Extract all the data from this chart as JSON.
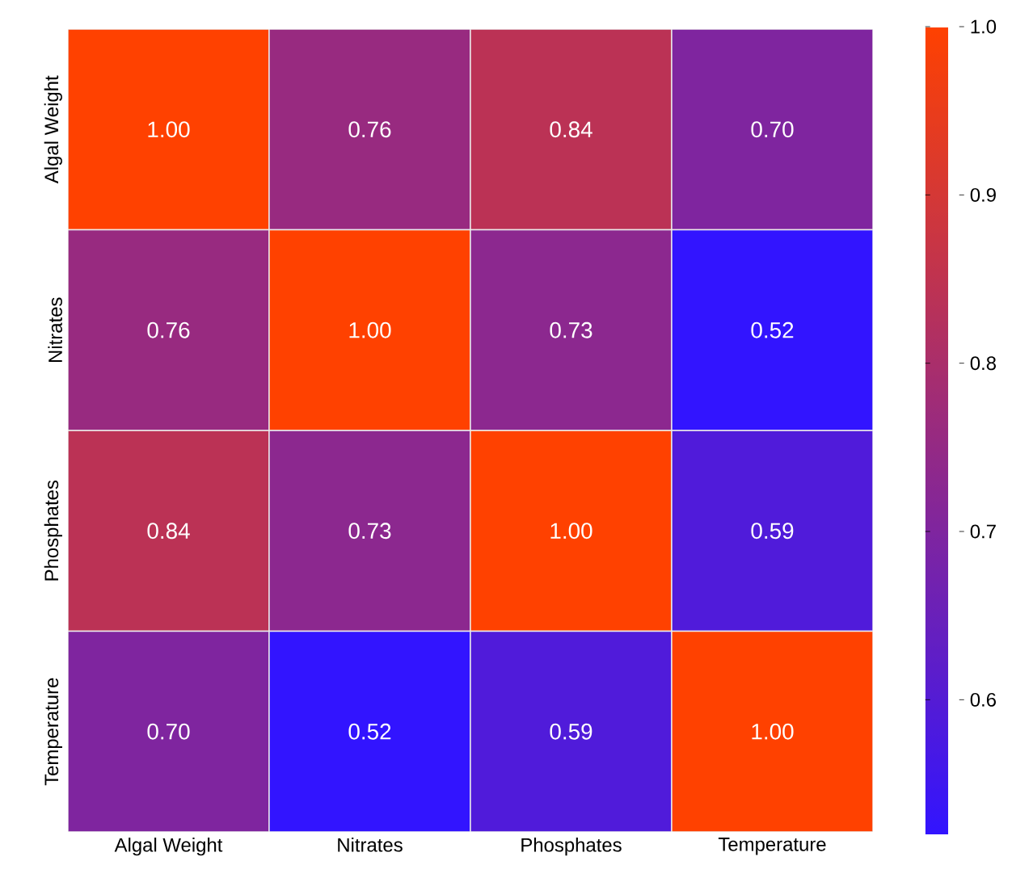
{
  "chart_data": {
    "type": "heatmap",
    "categories": [
      "Algal Weight",
      "Nitrates",
      "Phosphates",
      "Temperature"
    ],
    "y_categories": [
      "Algal Weight",
      "Nitrates",
      "Phosphates",
      "Temperature"
    ],
    "cells": [
      [
        1.0,
        0.76,
        0.84,
        0.7
      ],
      [
        0.76,
        1.0,
        0.73,
        0.52
      ],
      [
        0.84,
        0.73,
        1.0,
        0.59
      ],
      [
        0.7,
        0.52,
        0.59,
        1.0
      ]
    ],
    "cell_labels": [
      [
        "1.00",
        "0.76",
        "0.84",
        "0.70"
      ],
      [
        "0.76",
        "1.00",
        "0.73",
        "0.52"
      ],
      [
        "0.84",
        "0.73",
        "1.00",
        "0.59"
      ],
      [
        "0.70",
        "0.52",
        "0.59",
        "1.00"
      ]
    ],
    "clim": [
      0.52,
      1.0
    ],
    "cticks": [
      {
        "value": 1.0,
        "label": "1.0"
      },
      0.9,
      0.8,
      0.7,
      0.6
    ]
  }
}
